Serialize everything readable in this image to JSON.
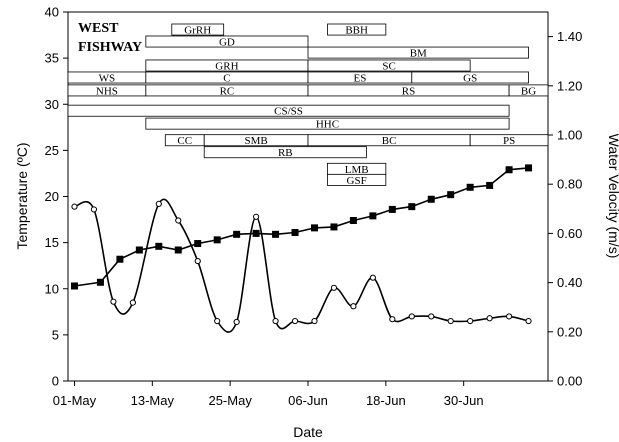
{
  "chart_data": {
    "type": "line",
    "title": "WEST FISHWAY",
    "xlabel": "Date",
    "ylabel_left": "Temperature (ºC)",
    "ylabel_right": "Water Velocity (m/s)",
    "ylim_left": [
      0,
      40
    ],
    "ylim_right": [
      0,
      1.5
    ],
    "yticks_left": [
      "0",
      "5",
      "10",
      "15",
      "20",
      "25",
      "30",
      "35",
      "40"
    ],
    "yticks_right": [
      "0.00",
      "0.20",
      "0.40",
      "0.60",
      "0.80",
      "1.00",
      "1.20",
      "1.40"
    ],
    "x_range": [
      "2000-04-30",
      "2000-07-13"
    ],
    "x_ticks": [
      {
        "date": "2000-05-01",
        "label": "01-May"
      },
      {
        "date": "2000-05-13",
        "label": "13-May"
      },
      {
        "date": "2000-05-25",
        "label": "25-May"
      },
      {
        "date": "2000-06-06",
        "label": "06-Jun"
      },
      {
        "date": "2000-06-18",
        "label": "18-Jun"
      },
      {
        "date": "2000-06-30",
        "label": "30-Jun"
      }
    ],
    "series": [
      {
        "axis": "left",
        "marker": "filled-square",
        "points": [
          [
            "2000-05-01",
            10.3
          ],
          [
            "2000-05-05",
            10.7
          ],
          [
            "2000-05-08",
            13.2
          ],
          [
            "2000-05-11",
            14.2
          ],
          [
            "2000-05-14",
            14.6
          ],
          [
            "2000-05-17",
            14.2
          ],
          [
            "2000-05-20",
            14.9
          ],
          [
            "2000-05-23",
            15.3
          ],
          [
            "2000-05-26",
            15.9
          ],
          [
            "2000-05-29",
            16.0
          ],
          [
            "2000-06-01",
            15.9
          ],
          [
            "2000-06-04",
            16.1
          ],
          [
            "2000-06-07",
            16.6
          ],
          [
            "2000-06-10",
            16.7
          ],
          [
            "2000-06-13",
            17.4
          ],
          [
            "2000-06-16",
            17.9
          ],
          [
            "2000-06-19",
            18.6
          ],
          [
            "2000-06-22",
            18.9
          ],
          [
            "2000-06-25",
            19.7
          ],
          [
            "2000-06-28",
            20.2
          ],
          [
            "2000-07-01",
            21.0
          ],
          [
            "2000-07-04",
            21.2
          ],
          [
            "2000-07-07",
            22.9
          ],
          [
            "2000-07-10",
            23.1
          ]
        ]
      },
      {
        "axis": "left",
        "marker": "open-circle",
        "points": [
          [
            "2000-05-01",
            18.9
          ],
          [
            "2000-05-04",
            18.6
          ],
          [
            "2000-05-07",
            8.6
          ],
          [
            "2000-05-10",
            8.5
          ],
          [
            "2000-05-14",
            19.2
          ],
          [
            "2000-05-17",
            17.4
          ],
          [
            "2000-05-20",
            13.0
          ],
          [
            "2000-05-23",
            6.5
          ],
          [
            "2000-05-26",
            6.4
          ],
          [
            "2000-05-29",
            17.8
          ],
          [
            "2000-06-01",
            6.5
          ],
          [
            "2000-06-04",
            6.5
          ],
          [
            "2000-06-07",
            6.5
          ],
          [
            "2000-06-10",
            10.1
          ],
          [
            "2000-06-13",
            8.1
          ],
          [
            "2000-06-16",
            11.2
          ],
          [
            "2000-06-19",
            6.7
          ],
          [
            "2000-06-22",
            7.0
          ],
          [
            "2000-06-25",
            7.0
          ],
          [
            "2000-06-28",
            6.5
          ],
          [
            "2000-07-01",
            6.5
          ],
          [
            "2000-07-04",
            6.8
          ],
          [
            "2000-07-07",
            7.0
          ],
          [
            "2000-07-10",
            6.5
          ]
        ]
      }
    ],
    "presence_bars": [
      {
        "label": "GrRH",
        "start": "2000-05-16",
        "end": "2000-05-24",
        "y": 38.1
      },
      {
        "label": "BBH",
        "start": "2000-06-09",
        "end": "2000-06-18",
        "y": 38.1
      },
      {
        "label": "GD",
        "start": "2000-05-12",
        "end": "2000-06-06",
        "y": 36.8
      },
      {
        "label": "BM",
        "start": "2000-06-06",
        "end": "2000-07-10",
        "y": 35.6
      },
      {
        "label": "GRH",
        "start": "2000-05-12",
        "end": "2000-06-06",
        "y": 34.2
      },
      {
        "label": "SC",
        "start": "2000-06-06",
        "end": "2000-07-01",
        "y": 34.2
      },
      {
        "label": "WS",
        "start": "2000-04-30",
        "end": "2000-05-12",
        "y": 32.9
      },
      {
        "label": "C",
        "start": "2000-05-12",
        "end": "2000-06-06",
        "y": 32.9
      },
      {
        "label": "ES",
        "start": "2000-06-06",
        "end": "2000-06-22",
        "y": 32.9
      },
      {
        "label": "GS",
        "start": "2000-06-22",
        "end": "2000-07-10",
        "y": 32.9
      },
      {
        "label": "NHS",
        "start": "2000-04-30",
        "end": "2000-05-12",
        "y": 31.5
      },
      {
        "label": "RC",
        "start": "2000-05-12",
        "end": "2000-06-06",
        "y": 31.5
      },
      {
        "label": "RS",
        "start": "2000-06-06",
        "end": "2000-07-07",
        "y": 31.5
      },
      {
        "label": "BG",
        "start": "2000-07-07",
        "end": "2000-07-13",
        "y": 31.5
      },
      {
        "label": "CS/SS",
        "start": "2000-04-30",
        "end": "2000-07-07",
        "y": 29.3
      },
      {
        "label": "HHC",
        "start": "2000-05-12",
        "end": "2000-07-07",
        "y": 27.9
      },
      {
        "label": "CC",
        "start": "2000-05-15",
        "end": "2000-05-21",
        "y": 26.1
      },
      {
        "label": "SMB",
        "start": "2000-05-21",
        "end": "2000-06-06",
        "y": 26.1
      },
      {
        "label": "BC",
        "start": "2000-06-06",
        "end": "2000-07-01",
        "y": 26.1
      },
      {
        "label": "PS",
        "start": "2000-07-01",
        "end": "2000-07-13",
        "y": 26.1
      },
      {
        "label": "RB",
        "start": "2000-05-21",
        "end": "2000-06-15",
        "y": 24.8
      },
      {
        "label": "LMB",
        "start": "2000-06-09",
        "end": "2000-06-18",
        "y": 23.0
      },
      {
        "label": "GSF",
        "start": "2000-06-09",
        "end": "2000-06-18",
        "y": 21.8
      }
    ]
  }
}
